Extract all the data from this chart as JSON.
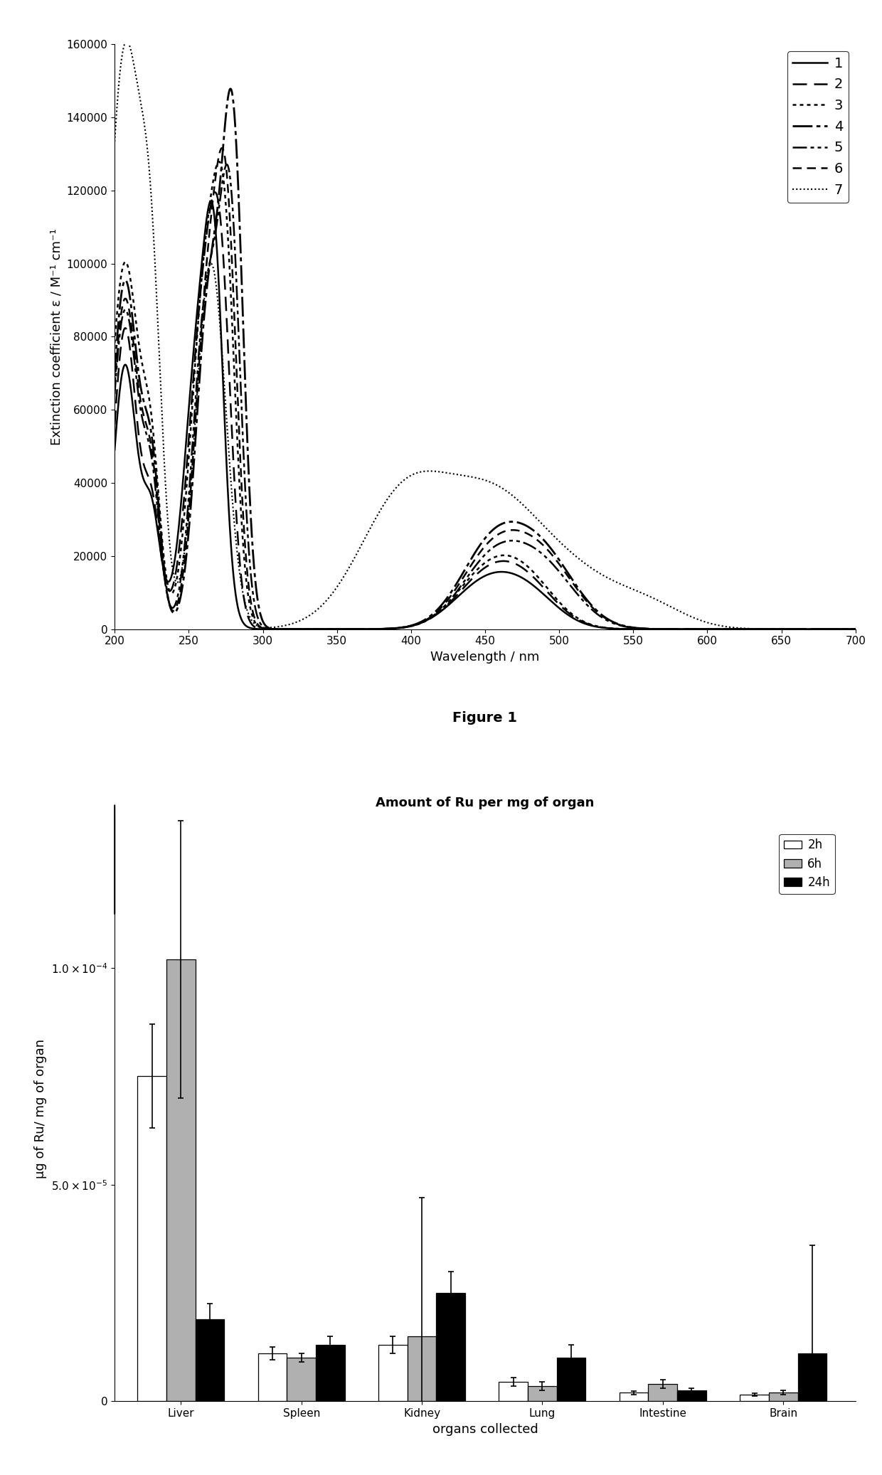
{
  "fig1": {
    "title": "Figure 1",
    "xlabel": "Wavelength / nm",
    "ylabel": "Extinction coefficient ε / M⁻¹ cm⁻¹",
    "xlim": [
      200,
      700
    ],
    "ylim": [
      0,
      160000
    ],
    "yticks": [
      0,
      20000,
      40000,
      60000,
      80000,
      100000,
      120000,
      140000,
      160000
    ],
    "xticks": [
      200,
      250,
      300,
      350,
      400,
      450,
      500,
      550,
      600,
      650,
      700
    ],
    "line_labels": [
      "1",
      "2",
      "3",
      "4",
      "5",
      "6",
      "7"
    ]
  },
  "fig2": {
    "title": "Amount of Ru per mg of organ",
    "xlabel": "organs collected",
    "ylabel": "μg of Ru/ mg of organ",
    "categories": [
      "Liver",
      "Spleen",
      "Kidney",
      "Lung",
      "Intestine",
      "Brain"
    ],
    "bar_labels": [
      "2h",
      "6h",
      "24h"
    ],
    "bar_colors": [
      "white",
      "#b0b0b0",
      "black"
    ],
    "ylim": [
      0,
      0.000135
    ],
    "yticks": [
      0,
      5e-05,
      0.0001
    ],
    "values_2h": [
      7.5e-05,
      1.1e-05,
      1.3e-05,
      4.5e-06,
      2e-06,
      1.5e-06
    ],
    "values_6h": [
      0.000102,
      1e-05,
      1.5e-05,
      3.5e-06,
      4e-06,
      2e-06
    ],
    "values_24h": [
      1.9e-05,
      1.3e-05,
      2.5e-05,
      1e-05,
      2.5e-06,
      1.1e-05
    ],
    "errors_2h": [
      1.2e-05,
      1.5e-06,
      2e-06,
      1e-06,
      4e-07,
      3e-07
    ],
    "errors_6h": [
      3.2e-05,
      1e-06,
      3.2e-05,
      1e-06,
      1e-06,
      5e-07
    ],
    "errors_24h": [
      3.5e-06,
      2e-06,
      5e-06,
      3e-06,
      5e-07,
      2.5e-05
    ]
  }
}
